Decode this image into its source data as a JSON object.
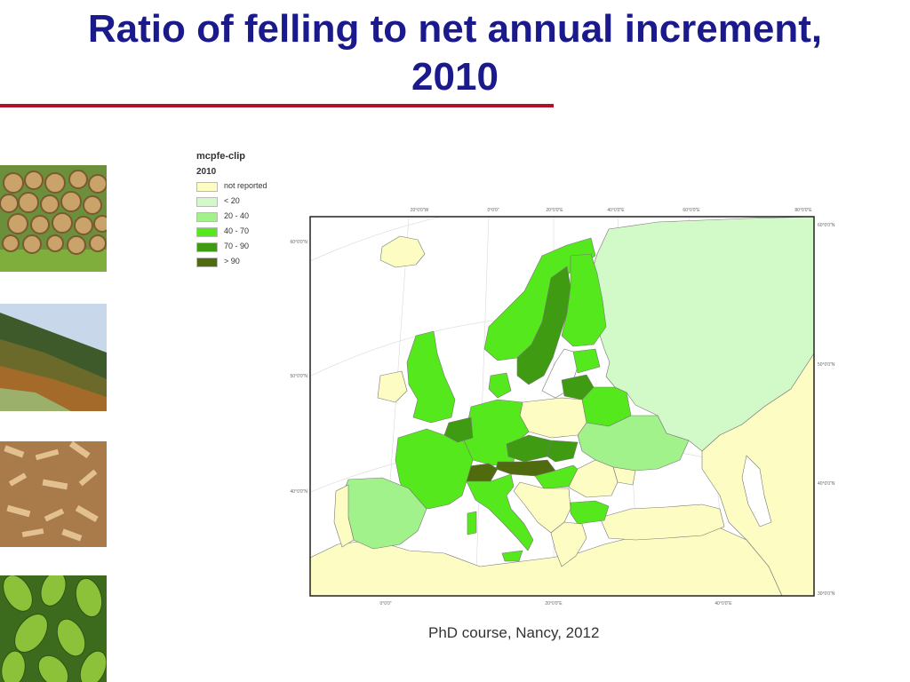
{
  "slide": {
    "title_line1": "Ratio of felling to net annual increment,",
    "title_line2": "2010",
    "footer": "PhD course, Nancy, 2012"
  },
  "legend": {
    "layer": "mcpfe-clip",
    "year": "2010",
    "classes": [
      {
        "label": "not reported",
        "color": "#fdfdc3"
      },
      {
        "label": "< 20",
        "color": "#d2f9c8"
      },
      {
        "label": "20 - 40",
        "color": "#a1f28b"
      },
      {
        "label": "40 - 70",
        "color": "#55e81c"
      },
      {
        "label": "70 - 90",
        "color": "#3f9b12"
      },
      {
        "label": "> 90",
        "color": "#4f6b0d"
      }
    ]
  },
  "map": {
    "graticule_labels": {
      "top": [
        "20°0'0\"W",
        "0°0'0\"",
        "20°0'0\"E",
        "40°0'0\"E",
        "60°0'0\"E",
        "80°0'0\"E"
      ],
      "bottom": [
        "0°0'0\"",
        "20°0'0\"E",
        "40°0'0\"E"
      ],
      "left": [
        "60°0'0\"N",
        "50°0'0\"N",
        "40°0'0\"N"
      ],
      "right": [
        "60°0'0\"N",
        "50°0'0\"N",
        "40°0'0\"N",
        "30°0'0\"N"
      ]
    },
    "sea_color": "#ffffff",
    "not_reported_color": "#fdfdc3"
  },
  "colors": {
    "title": "#1a1a8c",
    "title_rule": "#b0102a"
  },
  "side_photos": [
    "stacked-logs",
    "forest-hillside",
    "wood-chips",
    "green-leaves"
  ]
}
